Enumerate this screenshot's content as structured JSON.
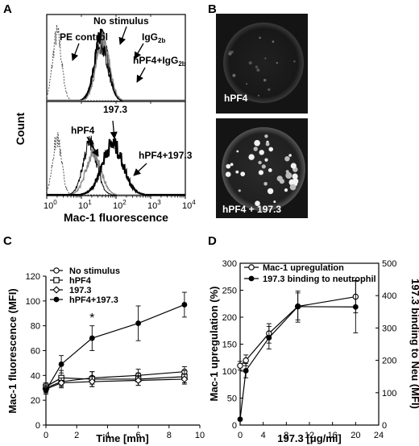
{
  "panels": {
    "A": "A",
    "B": "B",
    "C": "C",
    "D": "D"
  },
  "chart_data": [
    {
      "panel": "A (top)",
      "type": "line",
      "xscale": "log",
      "xlim": [
        1,
        10000
      ],
      "xlabel": "Mac-1 fluorescence",
      "ylabel": "Count",
      "xticks": [
        "10",
        "10",
        "10",
        "10",
        "10"
      ],
      "xtick_exponents": [
        "0",
        "1",
        "2",
        "3",
        "4"
      ],
      "annotations": {
        "pe_control": "PE control",
        "no_stimulus": "No stimulus",
        "igg2b": "IgG",
        "igg2b_sub": "2b",
        "hpf4_igg": "hPF4+IgG",
        "hpf4_igg_sub": "2b"
      },
      "series": [
        {
          "style": "dotted",
          "peak_log10": 0.3,
          "width": 0.13,
          "height": 0.85
        },
        {
          "style": "thick",
          "peak_log10": 1.58,
          "width": 0.19,
          "height": 0.82
        },
        {
          "style": "thin",
          "peak_log10": 1.56,
          "width": 0.2,
          "height": 0.72
        },
        {
          "style": "grey",
          "peak_log10": 1.62,
          "width": 0.19,
          "height": 0.78
        }
      ]
    },
    {
      "panel": "A (bottom)",
      "type": "line",
      "xscale": "log",
      "xlim": [
        1,
        10000
      ],
      "title": "197.3",
      "annotations": {
        "hpf4": "hPF4",
        "hpf4_1973": "hPF4+197.3"
      },
      "series": [
        {
          "style": "dotted",
          "peak_log10": 0.3,
          "width": 0.13,
          "height": 0.75
        },
        {
          "style": "thin",
          "peak_log10": 1.25,
          "width": 0.2,
          "height": 0.7
        },
        {
          "style": "grey",
          "peak_log10": 1.35,
          "width": 0.22,
          "height": 0.55
        },
        {
          "style": "thick",
          "peak_log10": 1.9,
          "width": 0.3,
          "height": 0.68
        }
      ]
    },
    {
      "panel": "C",
      "type": "line",
      "xlabel": "Time [min]",
      "ylabel": "Mac-1 fluorescence (MFI)",
      "xlim": [
        0,
        10
      ],
      "ylim": [
        0,
        120
      ],
      "xticks": [
        "0",
        "2",
        "4",
        "6",
        "8",
        "10"
      ],
      "yticks": [
        "0",
        "20",
        "40",
        "60",
        "80",
        "100",
        "120"
      ],
      "x": [
        0,
        1,
        3,
        6,
        9
      ],
      "significance": "*",
      "series": [
        {
          "name": "No stimulus",
          "marker": "circle-open",
          "values": [
            30,
            35,
            38,
            40,
            43
          ],
          "err": [
            3,
            4,
            5,
            5,
            4
          ]
        },
        {
          "name": "hPF4",
          "marker": "square-open",
          "values": [
            31,
            38,
            37,
            37,
            39
          ],
          "err": [
            3,
            6,
            6,
            5,
            5
          ]
        },
        {
          "name": "197.3",
          "marker": "diamond-open",
          "values": [
            29,
            34,
            35,
            36,
            37
          ],
          "err": [
            3,
            4,
            4,
            4,
            4
          ]
        },
        {
          "name": "hPF4+197.3",
          "marker": "circle-filled",
          "values": [
            28,
            49,
            70,
            82,
            97
          ],
          "err": [
            3,
            7,
            10,
            14,
            10
          ]
        }
      ]
    },
    {
      "panel": "D",
      "type": "line",
      "xlabel_prefix": "197.3 [",
      "xlabel_mu": "μ",
      "xlabel_suffix": "g/ml]",
      "ylabel_left": "Mac-1 upregulation (%)",
      "ylabel_right": "197.3 binding to Neu (MFI)",
      "xlim": [
        0,
        24
      ],
      "ylim_left": [
        0,
        300
      ],
      "ylim_right": [
        0,
        500
      ],
      "xticks": [
        "0",
        "4",
        "8",
        "12",
        "16",
        "20",
        "24"
      ],
      "yticks_left": [
        "0",
        "50",
        "100",
        "150",
        "200",
        "250",
        "300"
      ],
      "yticks_right": [
        "0",
        "100",
        "200",
        "300",
        "400",
        "500"
      ],
      "x": [
        0,
        1,
        5,
        10,
        20
      ],
      "series": [
        {
          "name": "Mac-1 upregulation",
          "axis": "left",
          "marker": "circle-open",
          "values": [
            110,
            120,
            170,
            220,
            238
          ],
          "err": [
            8,
            10,
            18,
            25,
            30
          ]
        },
        {
          "name": "197.3 binding to neutrophil",
          "axis": "right",
          "marker": "circle-filled",
          "values": [
            18,
            168,
            270,
            366,
            365
          ],
          "err": [
            3,
            22,
            35,
            48,
            80
          ]
        }
      ]
    }
  ],
  "micrographs": [
    {
      "label": "hPF4",
      "dots": 16,
      "brightness": "dim"
    },
    {
      "label": "hPF4 + 197.3",
      "dots": 38,
      "brightness": "bright"
    }
  ]
}
